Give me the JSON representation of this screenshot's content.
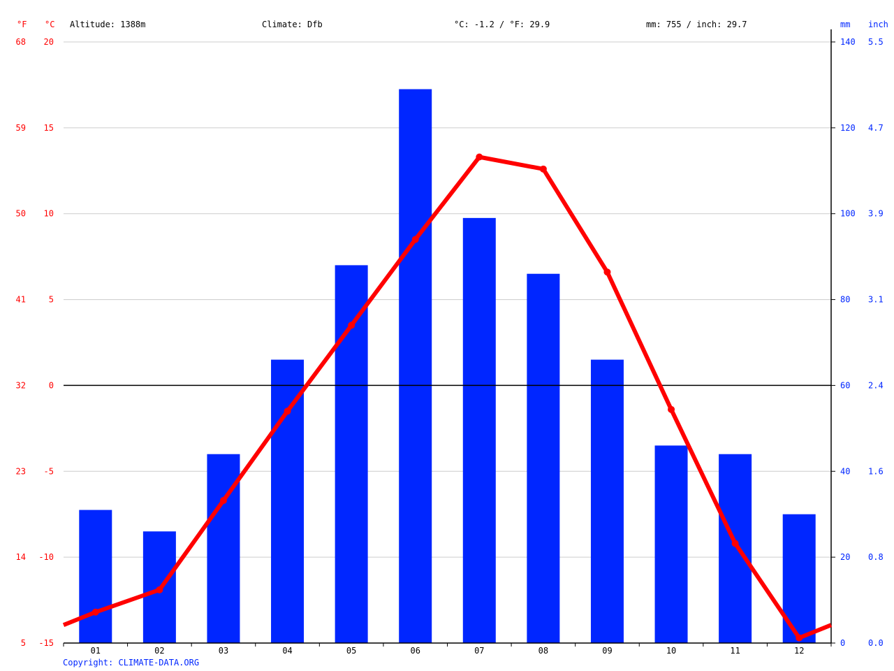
{
  "header": {
    "unit_f": "°F",
    "unit_c": "°C",
    "altitude": "Altitude: 1388m",
    "climate": "Climate: Dfb",
    "temp_summary": "°C: -1.2 / °F: 29.9",
    "precip_summary": "mm: 755 / inch: 29.7",
    "unit_mm": "mm",
    "unit_inch": "inch"
  },
  "footer": {
    "copyright": "Copyright: CLIMATE-DATA.ORG"
  },
  "colors": {
    "temperature": "#ff0000",
    "precipitation": "#0026ff",
    "grid": "#cccccc",
    "axis": "#000000",
    "left_labels": "#ff0000",
    "right_labels": "#0026ff"
  },
  "axes": {
    "left_f_ticks": [
      "68",
      "59",
      "50",
      "41",
      "32",
      "23",
      "14",
      "5"
    ],
    "left_c_ticks": [
      "20",
      "15",
      "10",
      "5",
      "0",
      "-5",
      "-10",
      "-15"
    ],
    "right_mm_ticks": [
      "140",
      "120",
      "100",
      "80",
      "60",
      "40",
      "20",
      "0"
    ],
    "right_inch_ticks": [
      "5.5",
      "4.7",
      "3.9",
      "3.1",
      "2.4",
      "1.6",
      "0.8",
      "0.0"
    ]
  },
  "chart_data": {
    "type": "bar+line",
    "title": "",
    "categories": [
      "01",
      "02",
      "03",
      "04",
      "05",
      "06",
      "07",
      "08",
      "09",
      "10",
      "11",
      "12"
    ],
    "series": [
      {
        "name": "Precipitation (mm)",
        "type": "bar",
        "axis": "right",
        "values": [
          31,
          26,
          44,
          66,
          88,
          129,
          99,
          86,
          66,
          46,
          44,
          30
        ]
      },
      {
        "name": "Temperature (°C)",
        "type": "line",
        "axis": "left",
        "values": [
          -13.2,
          -11.9,
          -6.7,
          -1.5,
          3.5,
          8.5,
          13.3,
          12.6,
          6.6,
          -1.4,
          -9.2,
          -14.7
        ]
      }
    ],
    "xlabel": "",
    "ylabel_left": "°C / °F",
    "ylabel_right": "mm / inch",
    "ylim_left_c": [
      -15,
      20
    ],
    "ylim_left_f": [
      5,
      68
    ],
    "ylim_right_mm": [
      0,
      140
    ],
    "ylim_right_inch": [
      0.0,
      5.5
    ],
    "grid": true,
    "legend": null,
    "annotations": [
      "Altitude: 1388m",
      "Climate: Dfb",
      "°C: -1.2 / °F: 29.9",
      "mm: 755 / inch: 29.7"
    ]
  }
}
